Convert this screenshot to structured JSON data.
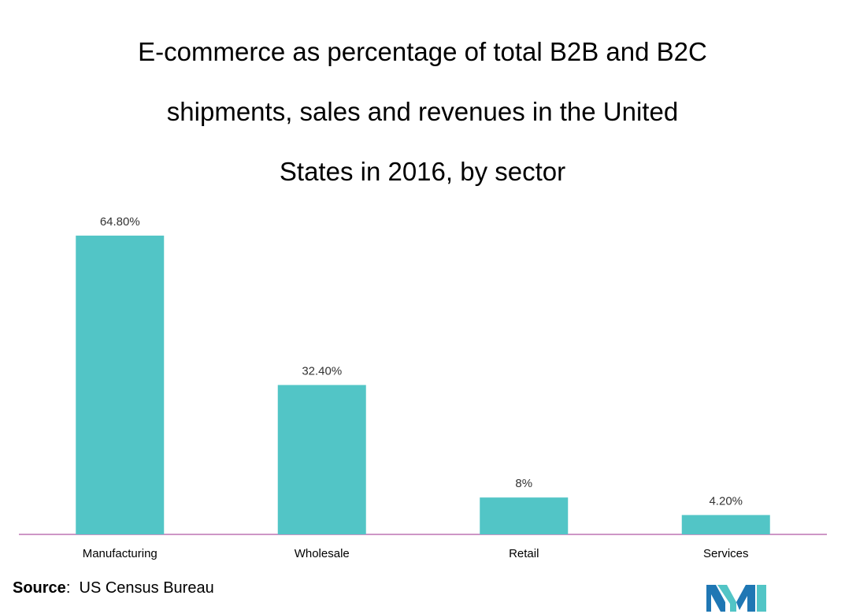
{
  "title_lines": [
    "E-commerce as percentage of total B2B and B2C",
    "shipments, sales and revenues in the United",
    "States in 2016, by sector"
  ],
  "chart_data": {
    "type": "bar",
    "title": "E-commerce as percentage of total B2B and B2C shipments, sales and revenues in the United States in 2016, by sector",
    "categories": [
      "Manufacturing",
      "Wholesale",
      "Retail",
      "Services"
    ],
    "values": [
      64.8,
      32.4,
      8,
      4.2
    ],
    "data_labels": [
      "64.80%",
      "32.40%",
      "8%",
      "4.20%"
    ],
    "xlabel": "",
    "ylabel": "",
    "ylim": [
      0,
      70
    ],
    "grid": false,
    "legend": "none",
    "bar_color": "#52c5c6",
    "axis_color": "#9b2d8e"
  },
  "source": {
    "label": "Source",
    "separator": ":",
    "text": "US Census Bureau"
  },
  "logo": {
    "icon": "mordor-intelligence-logo",
    "colors": [
      "#1f77b4",
      "#52c5c6"
    ]
  }
}
